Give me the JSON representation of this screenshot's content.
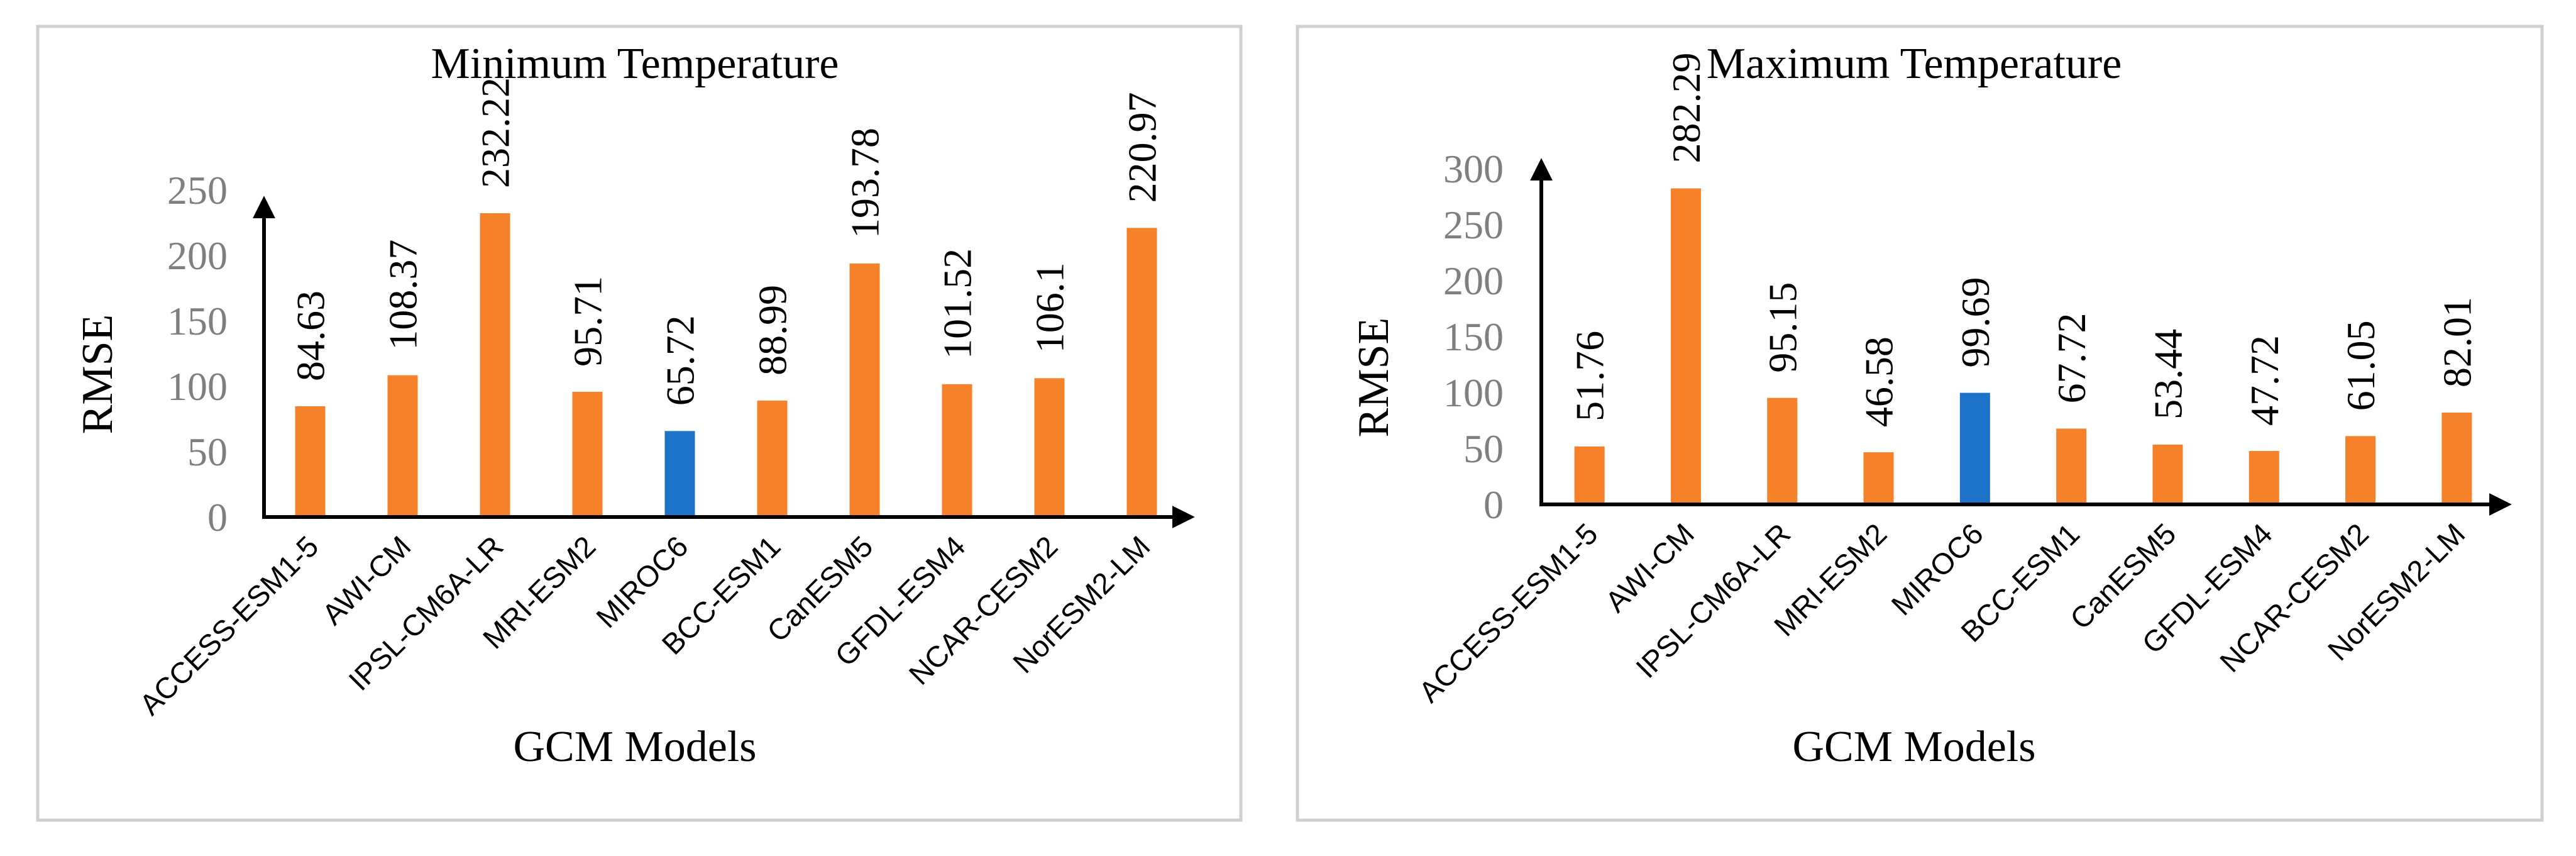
{
  "colors": {
    "bar": "#F5812A",
    "highlight": "#1C73C7",
    "frame": "#d0d0d0",
    "axis": "#000000",
    "tick": "#7f7f7f"
  },
  "chart_data": [
    {
      "type": "bar",
      "title": "Minimum Temperature",
      "xlabel": "GCM Models",
      "ylabel": "RMSE",
      "ylim": [
        0,
        250
      ],
      "yticks": [
        0,
        50,
        100,
        150,
        200,
        250
      ],
      "categories": [
        "ACCESS-ESM1-5",
        "AWI-CM",
        "IPSL-CM6A-LR",
        "MRI-ESM2",
        "MIROC6",
        "BCC-ESM1",
        "CanESM5",
        "GFDL-ESM4",
        "NCAR-CESM2",
        "NorESM2-LM"
      ],
      "values": [
        84.63,
        108.37,
        232.22,
        95.71,
        65.72,
        88.99,
        193.78,
        101.52,
        106.1,
        220.97
      ],
      "value_labels": [
        "84.63",
        "108.37",
        "232.22",
        "95.71",
        "65.72",
        "88.99",
        "193.78",
        "101.52",
        "106.1",
        "220.97"
      ],
      "highlight_index": 4,
      "grid": false
    },
    {
      "type": "bar",
      "title": "Maximum Temperature",
      "xlabel": "GCM Models",
      "ylabel": "RMSE",
      "ylim": [
        0,
        300
      ],
      "yticks": [
        0,
        50,
        100,
        150,
        200,
        250,
        300
      ],
      "categories": [
        "ACCESS-ESM1-5",
        "AWI-CM",
        "IPSL-CM6A-LR",
        "MRI-ESM2",
        "MIROC6",
        "BCC-ESM1",
        "CanESM5",
        "GFDL-ESM4",
        "NCAR-CESM2",
        "NorESM2-LM"
      ],
      "values": [
        51.76,
        282.29,
        95.15,
        46.58,
        99.69,
        67.72,
        53.44,
        47.72,
        61.05,
        82.01
      ],
      "value_labels": [
        "51.76",
        "282.29",
        "95.15",
        "46.58",
        "99.69",
        "67.72",
        "53.44",
        "47.72",
        "61.05",
        "82.01"
      ],
      "highlight_index": 4,
      "grid": false
    }
  ]
}
